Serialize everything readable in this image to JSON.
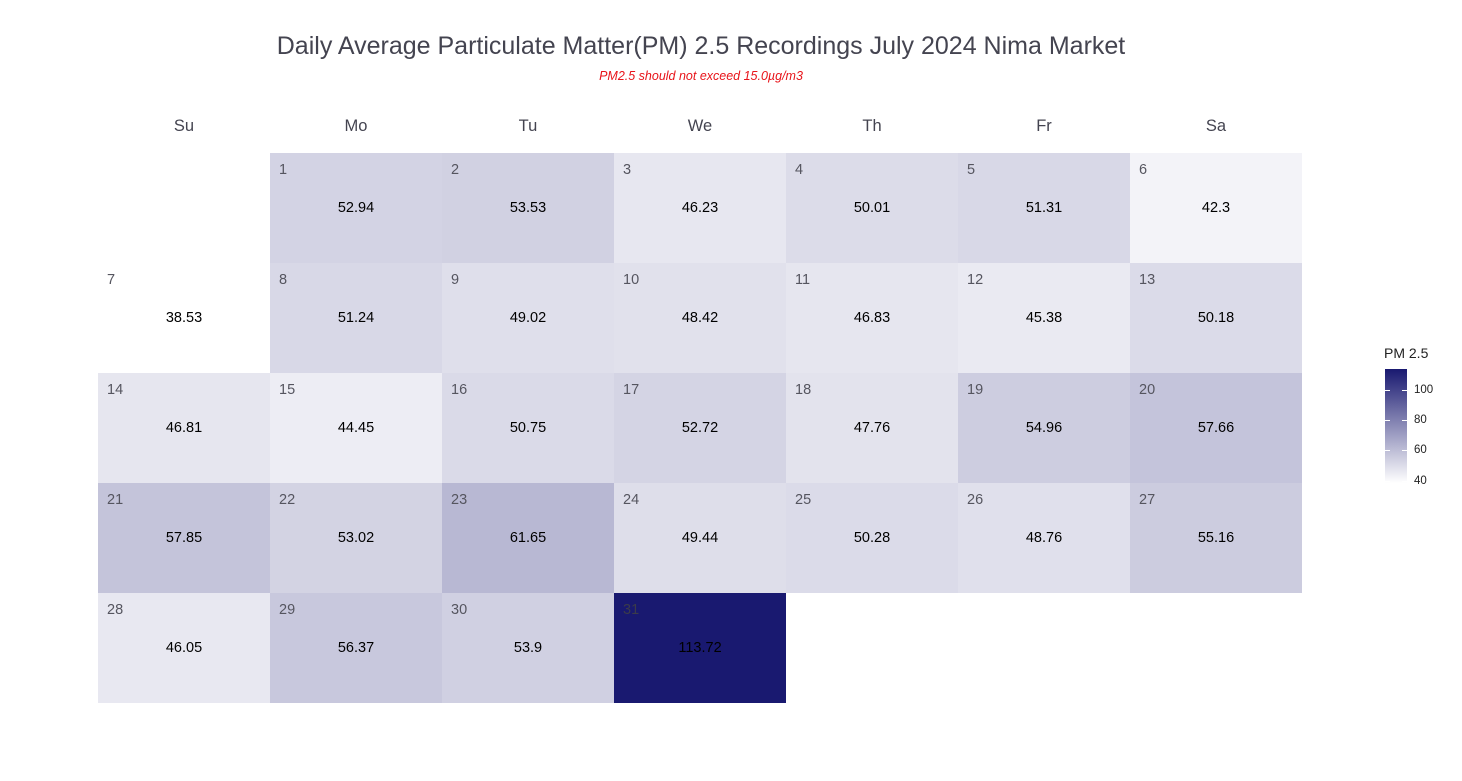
{
  "chart_data": {
    "type": "heatmap",
    "title": "Daily Average Particulate Matter(PM) 2.5 Recordings July 2024 Nima Market",
    "subtitle": "PM2.5 should not exceed 15.0µg/m3",
    "weekdays": [
      "Su",
      "Mo",
      "Tu",
      "We",
      "Th",
      "Fr",
      "Sa"
    ],
    "first_weekday_index": 1,
    "days": [
      {
        "day": "1",
        "value": 52.94
      },
      {
        "day": "2",
        "value": 53.53
      },
      {
        "day": "3",
        "value": 46.23
      },
      {
        "day": "4",
        "value": 50.01
      },
      {
        "day": "5",
        "value": 51.31
      },
      {
        "day": "6",
        "value": 42.3
      },
      {
        "day": "7",
        "value": 38.53
      },
      {
        "day": "8",
        "value": 51.24
      },
      {
        "day": "9",
        "value": 49.02
      },
      {
        "day": "10",
        "value": 48.42
      },
      {
        "day": "11",
        "value": 46.83
      },
      {
        "day": "12",
        "value": 45.38
      },
      {
        "day": "13",
        "value": 50.18
      },
      {
        "day": "14",
        "value": 46.81
      },
      {
        "day": "15",
        "value": 44.45
      },
      {
        "day": "16",
        "value": 50.75
      },
      {
        "day": "17",
        "value": 52.72
      },
      {
        "day": "18",
        "value": 47.76
      },
      {
        "day": "19",
        "value": 54.96
      },
      {
        "day": "20",
        "value": 57.66
      },
      {
        "day": "21",
        "value": 57.85
      },
      {
        "day": "22",
        "value": 53.02
      },
      {
        "day": "23",
        "value": 61.65
      },
      {
        "day": "24",
        "value": 49.44
      },
      {
        "day": "25",
        "value": 50.28
      },
      {
        "day": "26",
        "value": 48.76
      },
      {
        "day": "27",
        "value": 55.16
      },
      {
        "day": "28",
        "value": 46.05
      },
      {
        "day": "29",
        "value": 56.37
      },
      {
        "day": "30",
        "value": 53.9
      },
      {
        "day": "31",
        "value": 113.72
      }
    ],
    "legend": {
      "title": "PM 2.5",
      "ticks": [
        40,
        60,
        80,
        100
      ],
      "range": [
        38.53,
        113.72
      ],
      "color_low": "#ffffff",
      "color_high": "#191970"
    }
  }
}
